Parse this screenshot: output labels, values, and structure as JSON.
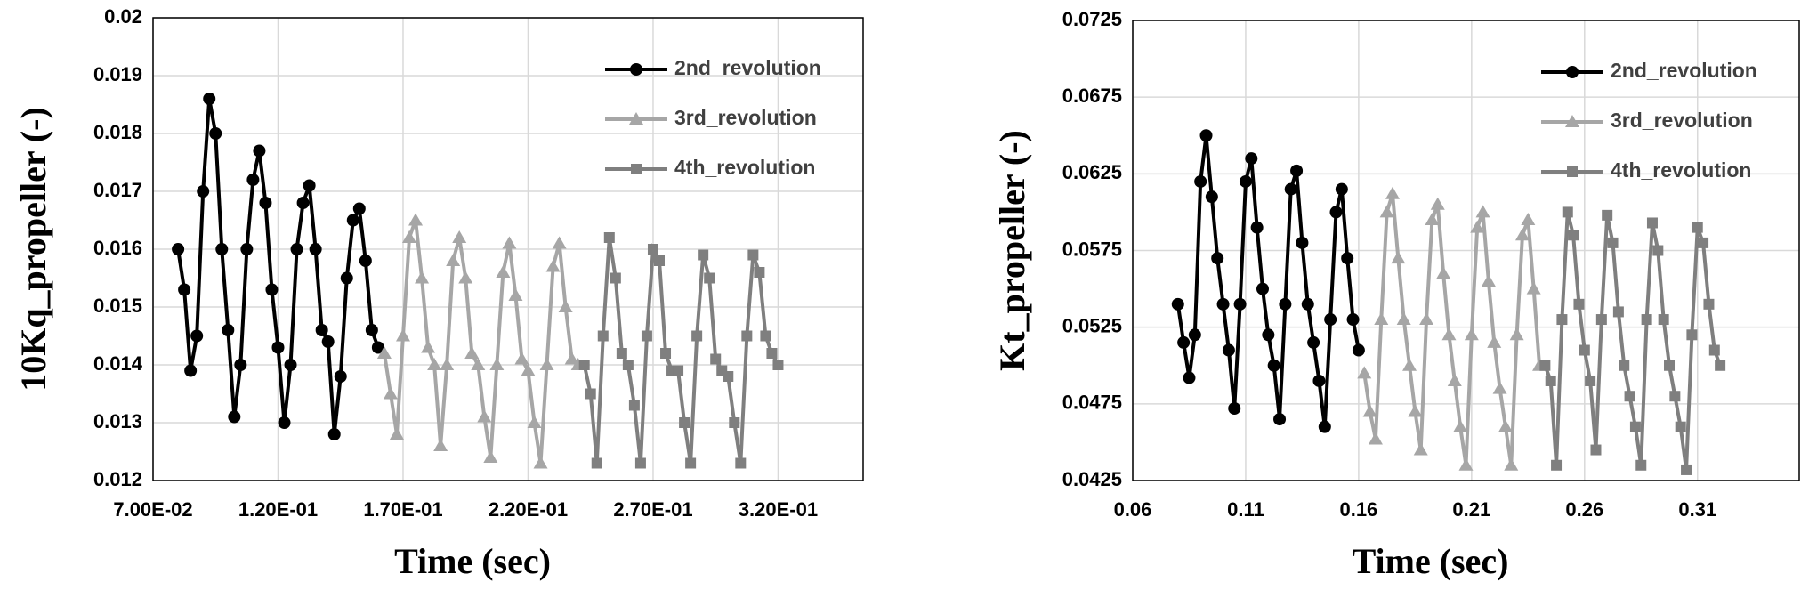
{
  "chart_data": [
    {
      "type": "line",
      "xlabel": "Time (sec)",
      "ylabel": "10Kq_propeller (-)",
      "xlim": [
        0.07,
        0.354
      ],
      "ylim": [
        0.012,
        0.02
      ],
      "xticks": [
        {
          "value": 0.07,
          "label": "7.00E-02"
        },
        {
          "value": 0.12,
          "label": "1.20E-01"
        },
        {
          "value": 0.17,
          "label": "1.70E-01"
        },
        {
          "value": 0.22,
          "label": "2.20E-01"
        },
        {
          "value": 0.27,
          "label": "2.70E-01"
        },
        {
          "value": 0.32,
          "label": "3.20E-01"
        }
      ],
      "yticks": [
        0.012,
        0.013,
        0.014,
        0.015,
        0.016,
        0.017,
        0.018,
        0.019,
        0.02
      ],
      "grid": true,
      "legend": "upper right",
      "series": [
        {
          "name": "2nd_revolution",
          "color": "#000000",
          "marker": "circle",
          "x": [
            0.08,
            0.0825,
            0.085,
            0.0875,
            0.09,
            0.0925,
            0.095,
            0.0975,
            0.1,
            0.1025,
            0.105,
            0.1075,
            0.11,
            0.1125,
            0.115,
            0.1175,
            0.12,
            0.1225,
            0.125,
            0.1275,
            0.13,
            0.1325,
            0.135,
            0.1375,
            0.14,
            0.1425,
            0.145,
            0.1475,
            0.15,
            0.1525,
            0.155,
            0.1575,
            0.16
          ],
          "values": [
            0.016,
            0.0153,
            0.0139,
            0.0145,
            0.017,
            0.0186,
            0.018,
            0.016,
            0.0146,
            0.0131,
            0.014,
            0.016,
            0.0172,
            0.0177,
            0.0168,
            0.0153,
            0.0143,
            0.013,
            0.014,
            0.016,
            0.0168,
            0.0171,
            0.016,
            0.0146,
            0.0144,
            0.0128,
            0.0138,
            0.0155,
            0.0165,
            0.0167,
            0.0158,
            0.0146,
            0.0143
          ]
        },
        {
          "name": "3rd_revolution",
          "color": "#a6a6a6",
          "marker": "triangle",
          "x": [
            0.1625,
            0.165,
            0.1675,
            0.17,
            0.1725,
            0.175,
            0.1775,
            0.18,
            0.1825,
            0.185,
            0.1875,
            0.19,
            0.1925,
            0.195,
            0.1975,
            0.2,
            0.2025,
            0.205,
            0.2075,
            0.21,
            0.2125,
            0.215,
            0.2175,
            0.22,
            0.2225,
            0.225,
            0.2275,
            0.23,
            0.2325,
            0.235,
            0.2375,
            0.24
          ],
          "values": [
            0.0142,
            0.0135,
            0.0128,
            0.0145,
            0.0162,
            0.0165,
            0.0155,
            0.0143,
            0.014,
            0.0126,
            0.014,
            0.0158,
            0.0162,
            0.0155,
            0.0142,
            0.014,
            0.0131,
            0.0124,
            0.014,
            0.0156,
            0.0161,
            0.0152,
            0.0141,
            0.0139,
            0.013,
            0.0123,
            0.014,
            0.0157,
            0.0161,
            0.015,
            0.0141,
            0.014
          ]
        },
        {
          "name": "4th_revolution",
          "color": "#7f7f7f",
          "marker": "square",
          "x": [
            0.2425,
            0.245,
            0.2475,
            0.25,
            0.2525,
            0.255,
            0.2575,
            0.26,
            0.2625,
            0.265,
            0.2675,
            0.27,
            0.2725,
            0.275,
            0.2775,
            0.28,
            0.2825,
            0.285,
            0.2875,
            0.29,
            0.2925,
            0.295,
            0.2975,
            0.3,
            0.3025,
            0.305,
            0.3075,
            0.31,
            0.3125,
            0.315,
            0.3175,
            0.32
          ],
          "values": [
            0.014,
            0.0135,
            0.0123,
            0.0145,
            0.0162,
            0.0155,
            0.0142,
            0.014,
            0.0133,
            0.0123,
            0.0145,
            0.016,
            0.0158,
            0.0142,
            0.0139,
            0.0139,
            0.013,
            0.0123,
            0.0145,
            0.0159,
            0.0155,
            0.0141,
            0.0139,
            0.0138,
            0.013,
            0.0123,
            0.0145,
            0.0159,
            0.0156,
            0.0145,
            0.0142,
            0.014
          ]
        }
      ]
    },
    {
      "type": "line",
      "xlabel": "Time (sec)",
      "ylabel": "Kt_propeller (-)",
      "xlim": [
        0.06,
        0.355
      ],
      "ylim": [
        0.0425,
        0.0725
      ],
      "xticks": [
        0.06,
        0.11,
        0.16,
        0.21,
        0.26,
        0.31
      ],
      "yticks": [
        0.0425,
        0.0475,
        0.0525,
        0.0575,
        0.0625,
        0.0675,
        0.0725
      ],
      "grid": true,
      "legend": "upper right",
      "series": [
        {
          "name": "2nd_revolution",
          "color": "#000000",
          "marker": "circle",
          "x": [
            0.08,
            0.0825,
            0.085,
            0.0875,
            0.09,
            0.0925,
            0.095,
            0.0975,
            0.1,
            0.1025,
            0.105,
            0.1075,
            0.11,
            0.1125,
            0.115,
            0.1175,
            0.12,
            0.1225,
            0.125,
            0.1275,
            0.13,
            0.1325,
            0.135,
            0.1375,
            0.14,
            0.1425,
            0.145,
            0.1475,
            0.15,
            0.1525,
            0.155,
            0.1575,
            0.16
          ],
          "values": [
            0.054,
            0.0515,
            0.0492,
            0.052,
            0.062,
            0.065,
            0.061,
            0.057,
            0.054,
            0.051,
            0.0472,
            0.054,
            0.062,
            0.0635,
            0.059,
            0.055,
            0.052,
            0.05,
            0.0465,
            0.054,
            0.0615,
            0.0627,
            0.058,
            0.054,
            0.0515,
            0.049,
            0.046,
            0.053,
            0.06,
            0.0615,
            0.057,
            0.053,
            0.051
          ]
        },
        {
          "name": "3rd_revolution",
          "color": "#a6a6a6",
          "marker": "triangle",
          "x": [
            0.1625,
            0.165,
            0.1675,
            0.17,
            0.1725,
            0.175,
            0.1775,
            0.18,
            0.1825,
            0.185,
            0.1875,
            0.19,
            0.1925,
            0.195,
            0.1975,
            0.2,
            0.2025,
            0.205,
            0.2075,
            0.21,
            0.2125,
            0.215,
            0.2175,
            0.22,
            0.2225,
            0.225,
            0.2275,
            0.23,
            0.2325,
            0.235,
            0.2375,
            0.24
          ],
          "values": [
            0.0495,
            0.047,
            0.0452,
            0.053,
            0.06,
            0.0612,
            0.057,
            0.053,
            0.05,
            0.047,
            0.0445,
            0.053,
            0.0595,
            0.0605,
            0.056,
            0.052,
            0.049,
            0.046,
            0.0435,
            0.052,
            0.059,
            0.06,
            0.0555,
            0.0515,
            0.0485,
            0.046,
            0.0435,
            0.052,
            0.0585,
            0.0595,
            0.055,
            0.05
          ]
        },
        {
          "name": "4th_revolution",
          "color": "#7f7f7f",
          "marker": "square",
          "x": [
            0.2425,
            0.245,
            0.2475,
            0.25,
            0.2525,
            0.255,
            0.2575,
            0.26,
            0.2625,
            0.265,
            0.2675,
            0.27,
            0.2725,
            0.275,
            0.2775,
            0.28,
            0.2825,
            0.285,
            0.2875,
            0.29,
            0.2925,
            0.295,
            0.2975,
            0.3,
            0.3025,
            0.305,
            0.3075,
            0.31,
            0.3125,
            0.315,
            0.3175,
            0.32
          ],
          "values": [
            0.05,
            0.049,
            0.0435,
            0.053,
            0.06,
            0.0585,
            0.054,
            0.051,
            0.049,
            0.0445,
            0.053,
            0.0598,
            0.058,
            0.0535,
            0.05,
            0.048,
            0.046,
            0.0435,
            0.053,
            0.0593,
            0.0575,
            0.053,
            0.05,
            0.048,
            0.046,
            0.0432,
            0.052,
            0.059,
            0.058,
            0.054,
            0.051,
            0.05
          ]
        }
      ]
    }
  ]
}
